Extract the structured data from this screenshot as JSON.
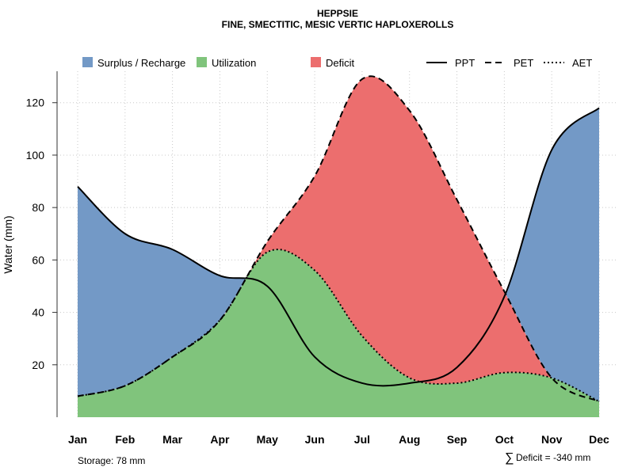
{
  "chart_data": {
    "type": "area",
    "title": "HEPPSIE",
    "subtitle": "FINE, SMECTITIC, MESIC VERTIC HAPLOXEROLLS",
    "xlabel": "",
    "ylabel": "Water (mm)",
    "categories": [
      "Jan",
      "Feb",
      "Mar",
      "Apr",
      "May",
      "Jun",
      "Jul",
      "Aug",
      "Sep",
      "Oct",
      "Nov",
      "Dec"
    ],
    "ylim": [
      0,
      132
    ],
    "yticks": [
      20,
      40,
      60,
      80,
      100,
      120
    ],
    "grid": true,
    "series": [
      {
        "name": "PPT",
        "line_style": "solid",
        "values": [
          88,
          70,
          64,
          54,
          50,
          23,
          13,
          13,
          19,
          46,
          102,
          118
        ]
      },
      {
        "name": "PET",
        "line_style": "dashed",
        "values": [
          8,
          12,
          23,
          37,
          67,
          92,
          129,
          117,
          83,
          48,
          15,
          6
        ]
      },
      {
        "name": "AET",
        "line_style": "dotted",
        "values": [
          8,
          12,
          23,
          37,
          63,
          56,
          31,
          15,
          13,
          17,
          15,
          6
        ]
      }
    ],
    "areas": [
      {
        "name": "Surplus / Recharge",
        "color": "#7399c6"
      },
      {
        "name": "Utilization",
        "color": "#80c47c"
      },
      {
        "name": "Deficit",
        "color": "#ec6e6e"
      }
    ],
    "legend": {
      "placement": "top",
      "areas": [
        "Surplus / Recharge",
        "Utilization",
        "Deficit"
      ],
      "lines": [
        "PPT",
        "PET",
        "AET"
      ]
    },
    "annotations": {
      "storage": "Storage: 78 mm",
      "deficit_symbol": "∑",
      "deficit": "Deficit = -340 mm"
    }
  }
}
